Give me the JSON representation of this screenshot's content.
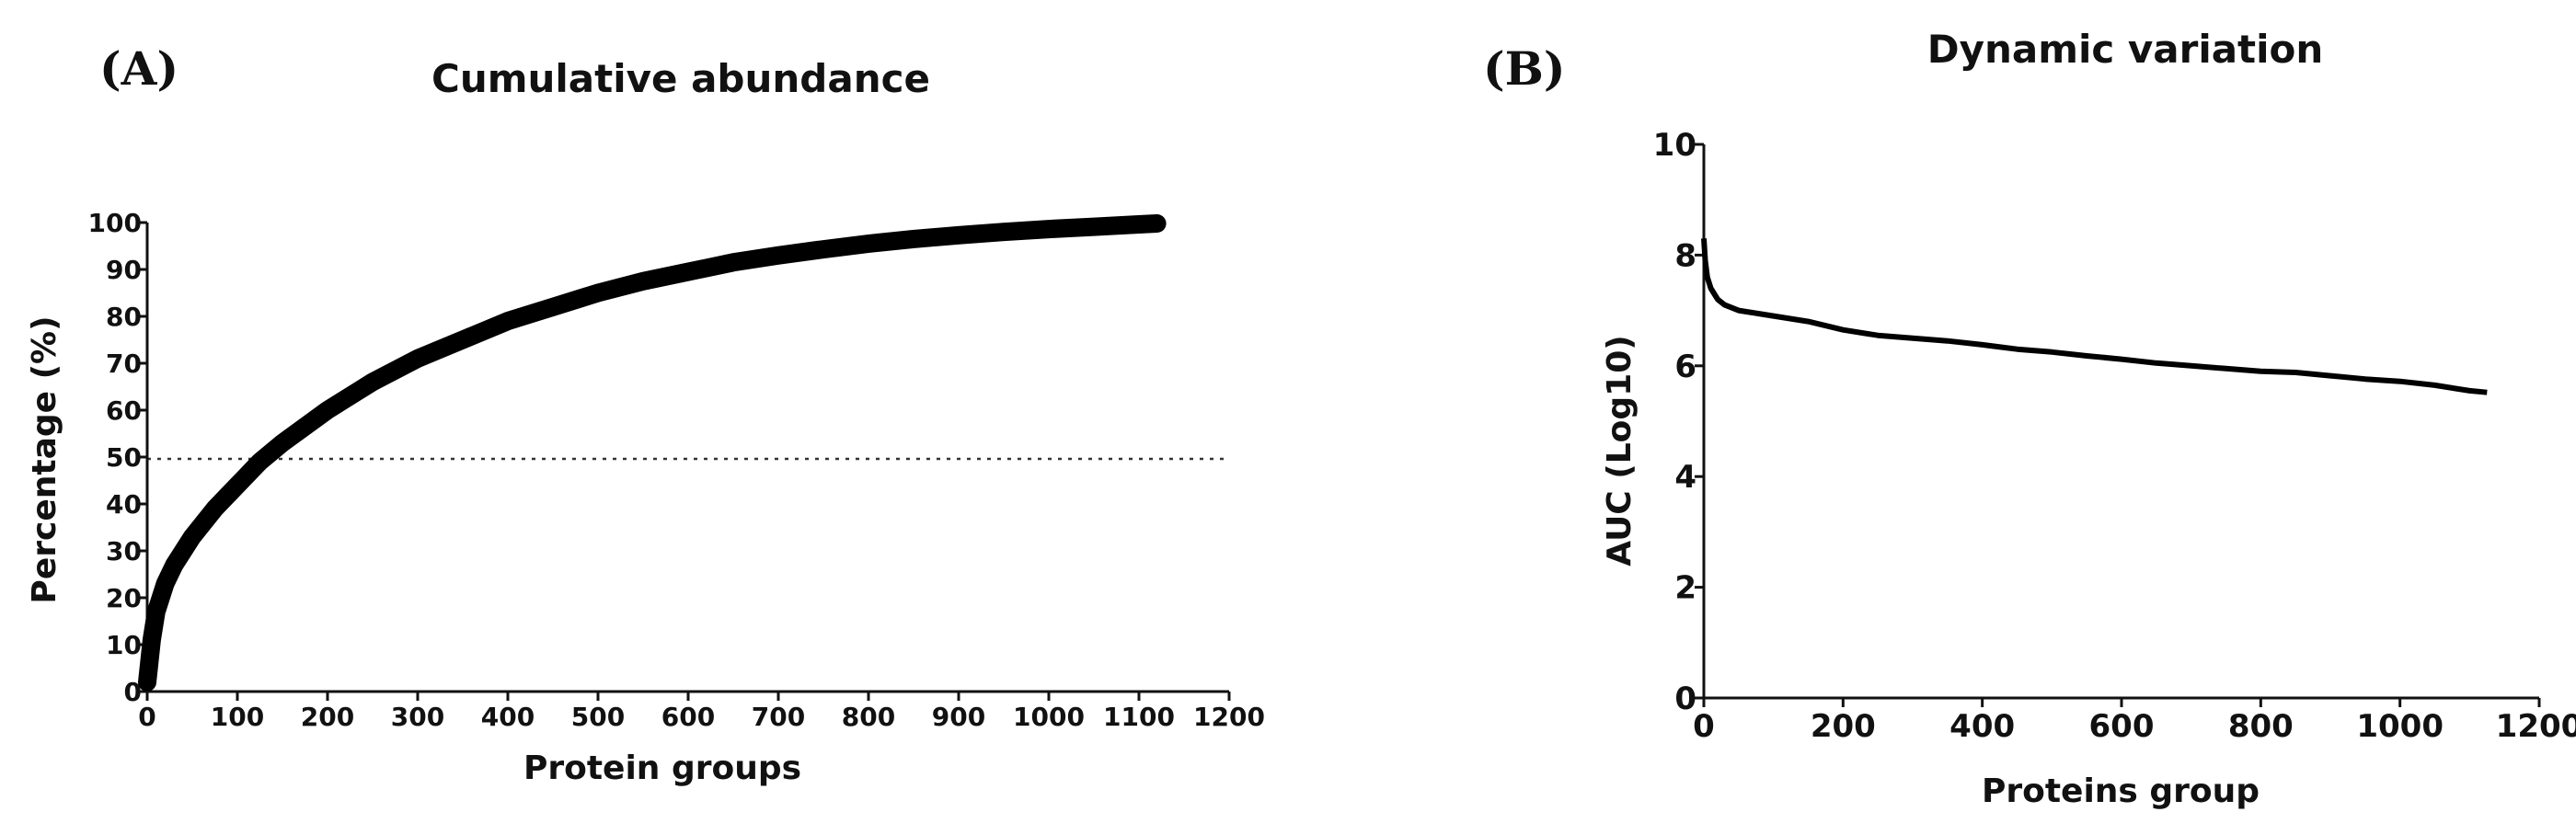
{
  "panels": {
    "a_label": "(A)",
    "b_label": "(B)"
  },
  "chart_data": [
    {
      "type": "line",
      "title": "Cumulative abundance",
      "xlabel": "Protein groups",
      "ylabel": "Percentage (%)",
      "xlim": [
        0,
        1200
      ],
      "ylim": [
        0,
        100
      ],
      "x_ticks": [
        "0",
        "100",
        "200",
        "300",
        "400",
        "500",
        "600",
        "700",
        "800",
        "900",
        "1000",
        "1100",
        "1200"
      ],
      "y_ticks": [
        "0",
        "10",
        "20",
        "30",
        "40",
        "50",
        "60",
        "70",
        "80",
        "90",
        "100"
      ],
      "reference_line": {
        "y": 50,
        "style": "dotted"
      },
      "series": [
        {
          "x": [
            0,
            5,
            10,
            20,
            30,
            50,
            75,
            100,
            125,
            150,
            200,
            250,
            300,
            350,
            400,
            450,
            500,
            550,
            600,
            650,
            700,
            750,
            800,
            850,
            900,
            950,
            1000,
            1050,
            1100,
            1120
          ],
          "y": [
            2,
            11,
            17,
            23,
            27,
            33,
            39,
            44,
            49,
            53,
            60,
            66,
            71,
            75,
            79,
            82,
            85,
            87.5,
            89.5,
            91.5,
            93,
            94.3,
            95.5,
            96.5,
            97.3,
            98,
            98.6,
            99.1,
            99.6,
            99.8
          ],
          "color": "#000000"
        }
      ],
      "grid": false
    },
    {
      "type": "line",
      "title": "Dynamic variation",
      "xlabel": "Proteins group",
      "ylabel": "AUC (Log10)",
      "xlim": [
        0,
        1200
      ],
      "ylim": [
        0,
        10
      ],
      "x_ticks": [
        "0",
        "200",
        "400",
        "600",
        "800",
        "1000",
        "1200"
      ],
      "y_ticks": [
        "0",
        "2",
        "4",
        "6",
        "8",
        "10"
      ],
      "series": [
        {
          "x": [
            0,
            2,
            5,
            10,
            15,
            20,
            30,
            50,
            75,
            100,
            150,
            200,
            250,
            300,
            350,
            400,
            450,
            500,
            550,
            600,
            650,
            700,
            750,
            800,
            850,
            900,
            950,
            1000,
            1050,
            1100,
            1125
          ],
          "y": [
            8.3,
            7.9,
            7.6,
            7.4,
            7.3,
            7.2,
            7.1,
            7.0,
            6.95,
            6.9,
            6.8,
            6.65,
            6.55,
            6.5,
            6.45,
            6.38,
            6.3,
            6.25,
            6.18,
            6.12,
            6.05,
            6.0,
            5.95,
            5.9,
            5.88,
            5.82,
            5.76,
            5.72,
            5.65,
            5.55,
            5.52
          ],
          "color": "#000000"
        }
      ],
      "grid": false
    }
  ]
}
